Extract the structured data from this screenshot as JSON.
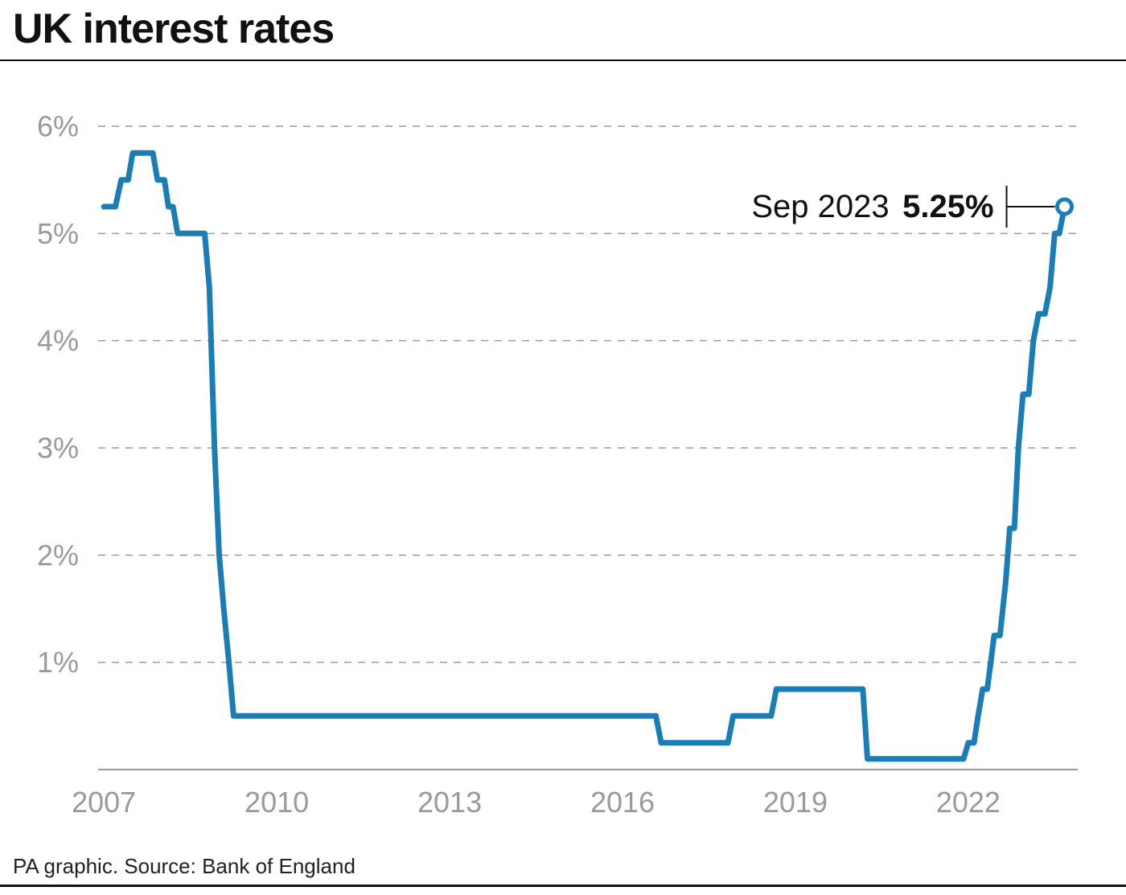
{
  "title": "UK interest rates",
  "source": "PA graphic. Source: Bank of England",
  "colors": {
    "line": "#1a7db5",
    "grid": "#9a9a9a",
    "text": "#111111",
    "tick": "#9a9a9a"
  },
  "annotation": {
    "label": "Sep 2023",
    "value": "5.25%"
  },
  "chart_data": {
    "type": "line",
    "title": "UK interest rates",
    "xlabel": "",
    "ylabel": "",
    "xlim": [
      2006.9,
      2023.9
    ],
    "ylim": [
      0,
      6
    ],
    "grid": true,
    "y_ticks": [
      {
        "value": 6,
        "label": "6%"
      },
      {
        "value": 5,
        "label": "5%"
      },
      {
        "value": 4,
        "label": "4%"
      },
      {
        "value": 3,
        "label": "3%"
      },
      {
        "value": 2,
        "label": "2%"
      },
      {
        "value": 1,
        "label": "1%"
      }
    ],
    "x_ticks": [
      {
        "value": 2007,
        "label": "2007"
      },
      {
        "value": 2010,
        "label": "2010"
      },
      {
        "value": 2013,
        "label": "2013"
      },
      {
        "value": 2016,
        "label": "2016"
      },
      {
        "value": 2019,
        "label": "2019"
      },
      {
        "value": 2022,
        "label": "2022"
      }
    ],
    "series": [
      {
        "values": [
          [
            2007.0,
            5.25
          ],
          [
            2007.2,
            5.25
          ],
          [
            2007.3,
            5.5
          ],
          [
            2007.42,
            5.5
          ],
          [
            2007.5,
            5.75
          ],
          [
            2007.85,
            5.75
          ],
          [
            2007.93,
            5.5
          ],
          [
            2008.05,
            5.5
          ],
          [
            2008.12,
            5.25
          ],
          [
            2008.2,
            5.25
          ],
          [
            2008.28,
            5.0
          ],
          [
            2008.75,
            5.0
          ],
          [
            2008.83,
            4.5
          ],
          [
            2008.92,
            3.0
          ],
          [
            2009.0,
            2.0
          ],
          [
            2009.08,
            1.5
          ],
          [
            2009.17,
            1.0
          ],
          [
            2009.25,
            0.5
          ],
          [
            2016.58,
            0.5
          ],
          [
            2016.67,
            0.25
          ],
          [
            2017.83,
            0.25
          ],
          [
            2017.92,
            0.5
          ],
          [
            2018.58,
            0.5
          ],
          [
            2018.67,
            0.75
          ],
          [
            2020.17,
            0.75
          ],
          [
            2020.25,
            0.1
          ],
          [
            2021.92,
            0.1
          ],
          [
            2022.0,
            0.25
          ],
          [
            2022.1,
            0.25
          ],
          [
            2022.17,
            0.5
          ],
          [
            2022.25,
            0.75
          ],
          [
            2022.33,
            0.75
          ],
          [
            2022.45,
            1.25
          ],
          [
            2022.55,
            1.25
          ],
          [
            2022.65,
            1.75
          ],
          [
            2022.72,
            2.25
          ],
          [
            2022.8,
            2.25
          ],
          [
            2022.87,
            3.0
          ],
          [
            2022.95,
            3.5
          ],
          [
            2023.05,
            3.5
          ],
          [
            2023.13,
            4.0
          ],
          [
            2023.22,
            4.25
          ],
          [
            2023.33,
            4.25
          ],
          [
            2023.42,
            4.5
          ],
          [
            2023.5,
            5.0
          ],
          [
            2023.58,
            5.0
          ],
          [
            2023.67,
            5.25
          ]
        ]
      }
    ]
  }
}
